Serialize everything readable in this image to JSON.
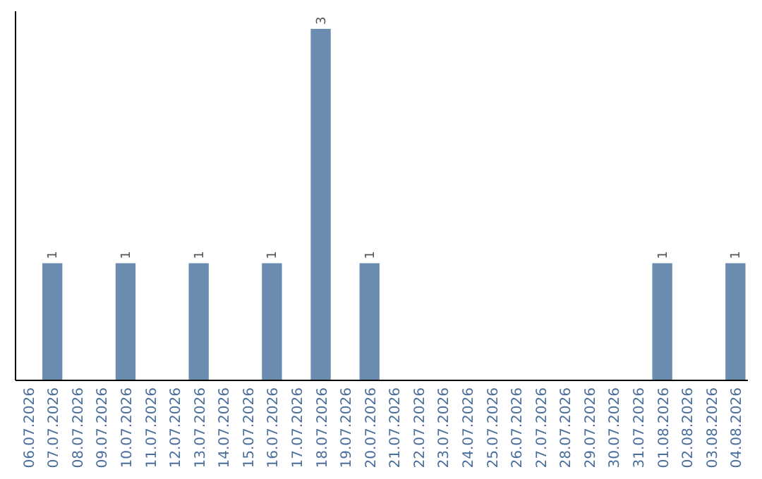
{
  "chart_data": {
    "type": "bar",
    "categories": [
      "06.07.2026",
      "07.07.2026",
      "08.07.2026",
      "09.07.2026",
      "10.07.2026",
      "11.07.2026",
      "12.07.2026",
      "13.07.2026",
      "14.07.2026",
      "15.07.2026",
      "16.07.2026",
      "17.07.2026",
      "18.07.2026",
      "19.07.2026",
      "20.07.2026",
      "21.07.2026",
      "22.07.2026",
      "23.07.2026",
      "24.07.2026",
      "25.07.2026",
      "26.07.2026",
      "27.07.2026",
      "28.07.2026",
      "29.07.2026",
      "30.07.2026",
      "31.07.2026",
      "01.08.2026",
      "02.08.2026",
      "03.08.2026",
      "04.08.2026"
    ],
    "values": [
      0,
      1,
      0,
      0,
      1,
      0,
      0,
      1,
      0,
      0,
      1,
      0,
      3,
      0,
      1,
      0,
      0,
      0,
      0,
      0,
      0,
      0,
      0,
      0,
      0,
      0,
      1,
      0,
      0,
      1
    ],
    "value_labels": [
      null,
      "1",
      null,
      null,
      "1",
      null,
      null,
      "1",
      null,
      null,
      "1",
      null,
      "3",
      null,
      "1",
      null,
      null,
      null,
      null,
      null,
      null,
      null,
      null,
      null,
      null,
      null,
      "1",
      null,
      null,
      "1"
    ],
    "color": "#6a8caf"
  }
}
